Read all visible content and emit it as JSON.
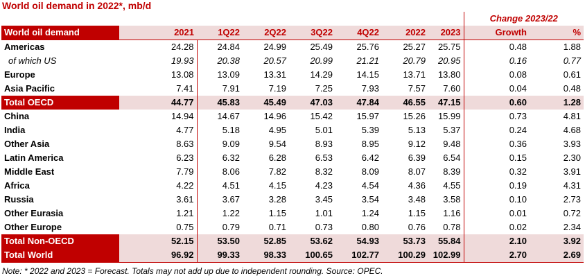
{
  "title": "World oil demand in 2022*, mb/d",
  "change_header": "Change 2023/22",
  "columns": [
    "World oil demand",
    "2021",
    "1Q22",
    "2Q22",
    "3Q22",
    "4Q22",
    "2022",
    "2023",
    "Growth",
    "%"
  ],
  "rows": [
    {
      "label": "Americas",
      "values": [
        "24.28",
        "24.84",
        "24.99",
        "25.49",
        "25.76",
        "25.27",
        "25.75",
        "0.48",
        "1.88"
      ],
      "type": "normal"
    },
    {
      "label": "of which US",
      "values": [
        "19.93",
        "20.38",
        "20.57",
        "20.99",
        "21.21",
        "20.79",
        "20.95",
        "0.16",
        "0.77"
      ],
      "type": "sub"
    },
    {
      "label": "Europe",
      "values": [
        "13.08",
        "13.09",
        "13.31",
        "14.29",
        "14.15",
        "13.71",
        "13.80",
        "0.08",
        "0.61"
      ],
      "type": "normal"
    },
    {
      "label": "Asia Pacific",
      "values": [
        "7.41",
        "7.91",
        "7.19",
        "7.25",
        "7.93",
        "7.57",
        "7.60",
        "0.04",
        "0.48"
      ],
      "type": "normal"
    },
    {
      "label": "Total OECD",
      "values": [
        "44.77",
        "45.83",
        "45.49",
        "47.03",
        "47.84",
        "46.55",
        "47.15",
        "0.60",
        "1.28"
      ],
      "type": "total"
    },
    {
      "label": "China",
      "values": [
        "14.94",
        "14.67",
        "14.96",
        "15.42",
        "15.97",
        "15.26",
        "15.99",
        "0.73",
        "4.81"
      ],
      "type": "normal"
    },
    {
      "label": "India",
      "values": [
        "4.77",
        "5.18",
        "4.95",
        "5.01",
        "5.39",
        "5.13",
        "5.37",
        "0.24",
        "4.68"
      ],
      "type": "normal"
    },
    {
      "label": "Other Asia",
      "values": [
        "8.63",
        "9.09",
        "9.54",
        "8.93",
        "8.95",
        "9.12",
        "9.48",
        "0.36",
        "3.93"
      ],
      "type": "normal"
    },
    {
      "label": "Latin America",
      "values": [
        "6.23",
        "6.32",
        "6.28",
        "6.53",
        "6.42",
        "6.39",
        "6.54",
        "0.15",
        "2.30"
      ],
      "type": "normal"
    },
    {
      "label": "Middle East",
      "values": [
        "7.79",
        "8.06",
        "7.82",
        "8.32",
        "8.09",
        "8.07",
        "8.39",
        "0.32",
        "3.91"
      ],
      "type": "normal"
    },
    {
      "label": "Africa",
      "values": [
        "4.22",
        "4.51",
        "4.15",
        "4.23",
        "4.54",
        "4.36",
        "4.55",
        "0.19",
        "4.31"
      ],
      "type": "normal"
    },
    {
      "label": "Russia",
      "values": [
        "3.61",
        "3.67",
        "3.28",
        "3.45",
        "3.54",
        "3.48",
        "3.58",
        "0.10",
        "2.73"
      ],
      "type": "normal"
    },
    {
      "label": "Other Eurasia",
      "values": [
        "1.21",
        "1.22",
        "1.15",
        "1.01",
        "1.24",
        "1.15",
        "1.16",
        "0.01",
        "0.72"
      ],
      "type": "normal"
    },
    {
      "label": "Other Europe",
      "values": [
        "0.75",
        "0.79",
        "0.71",
        "0.73",
        "0.80",
        "0.76",
        "0.78",
        "0.02",
        "2.34"
      ],
      "type": "normal"
    },
    {
      "label": "Total Non-OECD",
      "values": [
        "52.15",
        "53.50",
        "52.85",
        "53.62",
        "54.93",
        "53.73",
        "55.84",
        "2.10",
        "3.92"
      ],
      "type": "total"
    },
    {
      "label": "Total World",
      "values": [
        "96.92",
        "99.33",
        "98.33",
        "100.65",
        "102.77",
        "100.29",
        "102.99",
        "2.70",
        "2.69"
      ],
      "type": "total"
    }
  ],
  "note": "Note: * 2022 and 2023 = Forecast. Totals may not add up due to independent rounding. Source: OPEC.",
  "colors": {
    "accent": "#c00000",
    "shade": "#efdada"
  }
}
